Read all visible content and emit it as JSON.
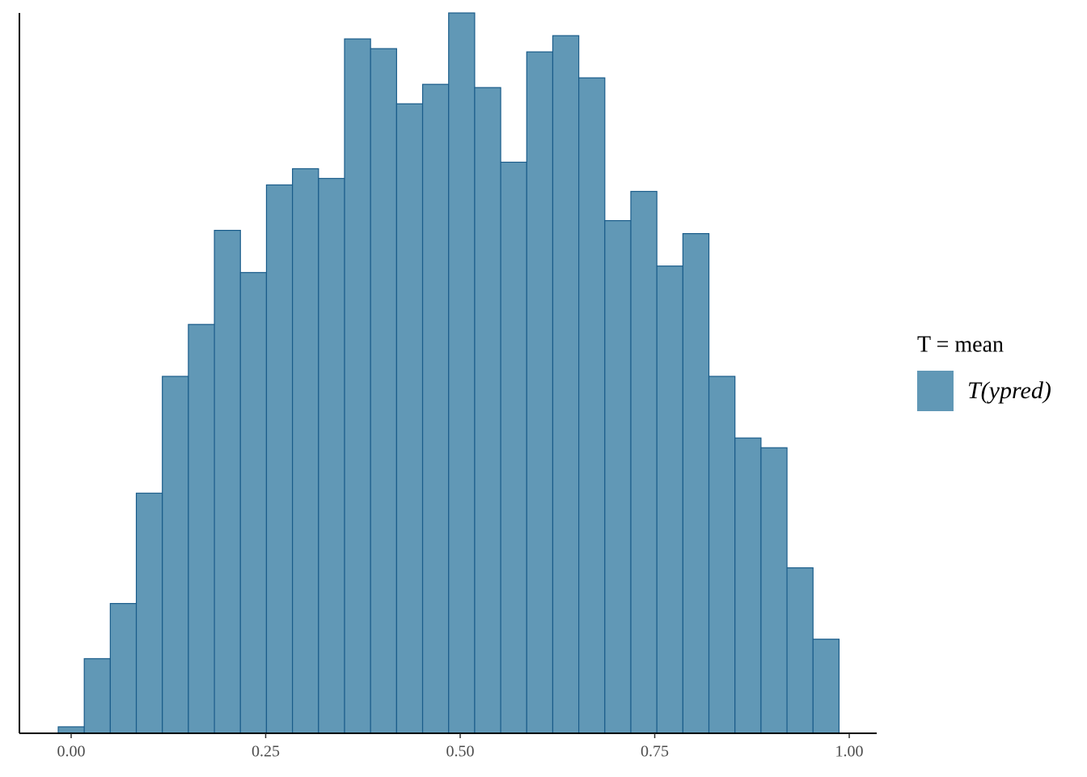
{
  "chart_data": {
    "type": "histogram",
    "bins": [
      -0.0166,
      0.01685,
      0.0503,
      0.08375,
      0.1172,
      0.15065,
      0.1841,
      0.21755,
      0.251,
      0.28445,
      0.3179,
      0.35135,
      0.3848,
      0.41825,
      0.4517,
      0.48515,
      0.5186,
      0.55205,
      0.5855,
      0.61895,
      0.6524,
      0.68585,
      0.7193,
      0.75275,
      0.7862,
      0.81965,
      0.8531,
      0.88655,
      0.92,
      0.95345,
      0.9869
    ],
    "series": [
      {
        "name": "T(ypred)",
        "color": "#6198b6",
        "values": [
          2,
          23,
          40,
          74,
          110,
          126,
          155,
          142,
          169,
          174,
          171,
          214,
          211,
          194,
          200,
          222,
          199,
          176,
          210,
          215,
          202,
          158,
          167,
          144,
          154,
          110,
          91,
          88,
          51,
          29
        ]
      }
    ],
    "legend_title": "T = mean",
    "xlim": [
      -0.0665,
      1.0353
    ],
    "xticks": [
      {
        "value": 0,
        "label": "0.00"
      },
      {
        "value": 0.25,
        "label": "0.25"
      },
      {
        "value": 0.5,
        "label": "0.50"
      },
      {
        "value": 0.75,
        "label": "0.75"
      },
      {
        "value": 1,
        "label": "1.00"
      }
    ],
    "ylim": [
      0,
      222
    ],
    "legend": "right"
  }
}
